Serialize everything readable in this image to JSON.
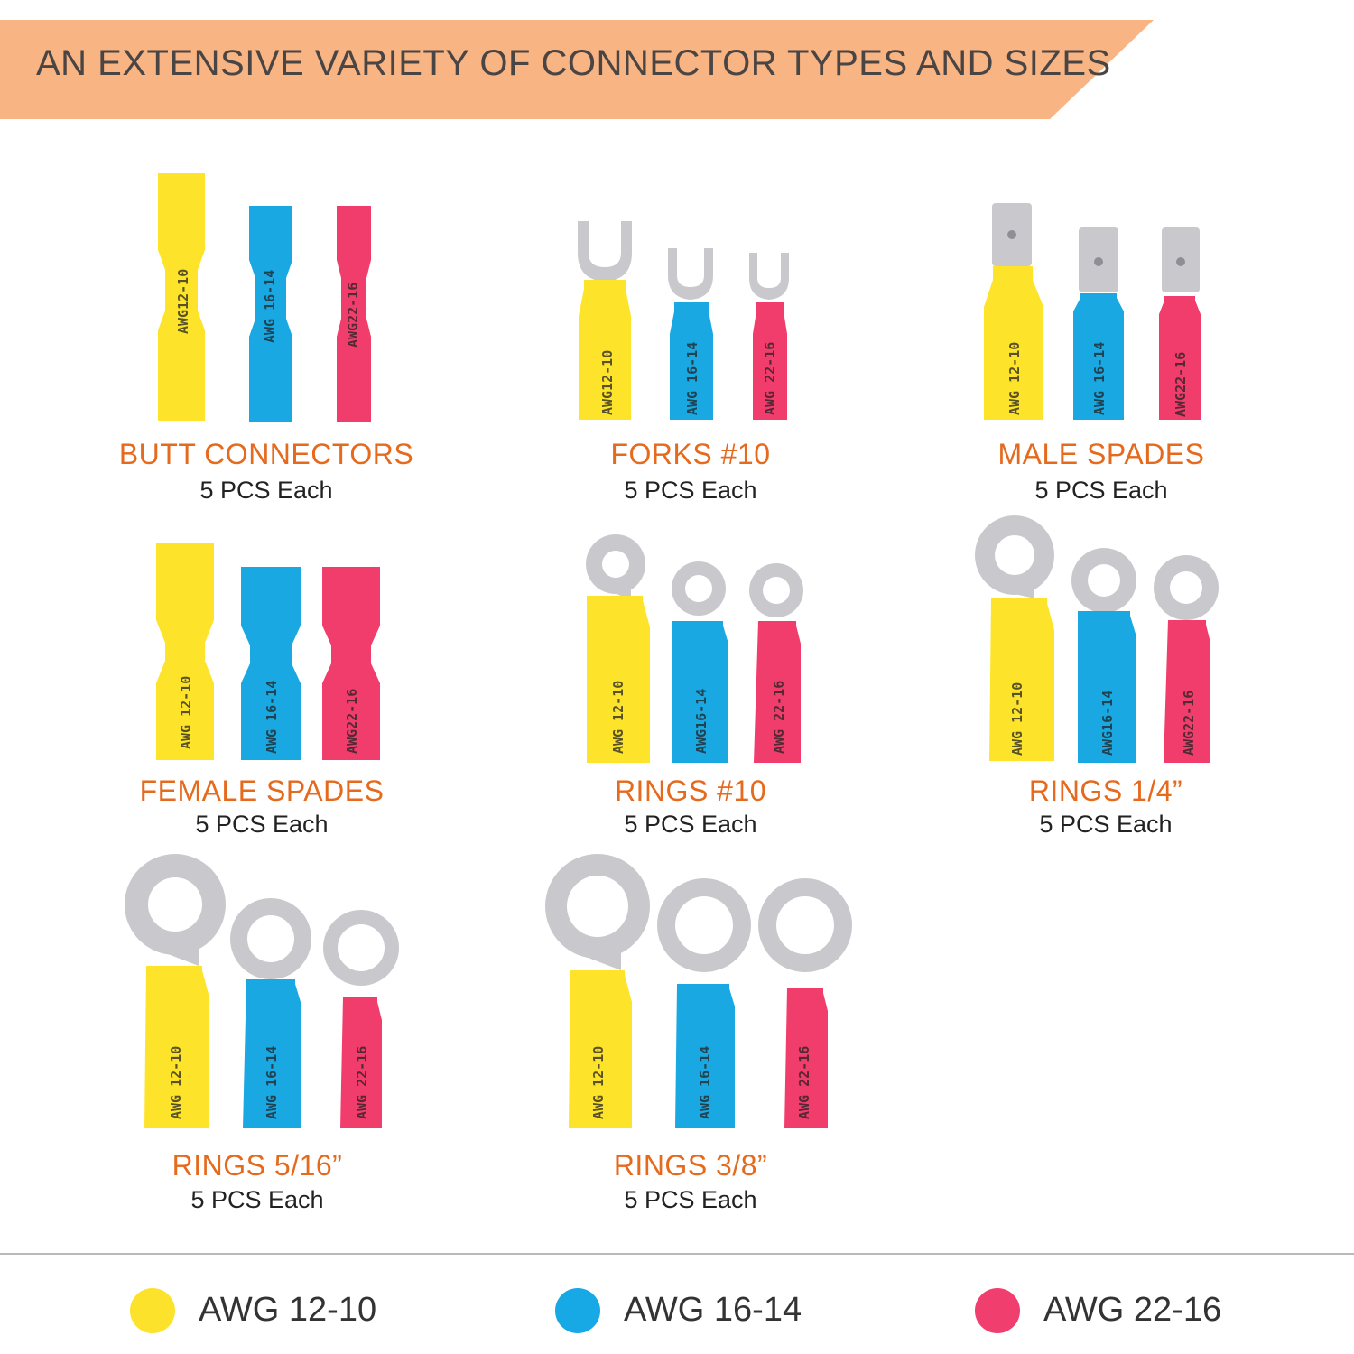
{
  "banner": {
    "title": "AN EXTENSIVE VARIETY OF CONNECTOR TYPES AND SIZES",
    "color": "#f8b482"
  },
  "colors": {
    "yellow": "#fde42a",
    "blue": "#1aa8e2",
    "pink": "#f03d6c",
    "metal": "#c9c9cd"
  },
  "connectors": [
    {
      "name": "BUTT CONNECTORS",
      "qty": "5 PCS Each",
      "marks": [
        "AWG12-10",
        "AWG 16-14",
        "AWG22-16"
      ]
    },
    {
      "name": "FORKS #10",
      "qty": "5 PCS Each",
      "marks": [
        "AWG12-10",
        "AWG 16-14",
        "AWG 22-16"
      ]
    },
    {
      "name": "MALE SPADES",
      "qty": "5 PCS Each",
      "marks": [
        "AWG 12-10",
        "AWG 16-14",
        "AWG22-16"
      ]
    },
    {
      "name": "FEMALE SPADES",
      "qty": "5 PCS Each",
      "marks": [
        "AWG 12-10",
        "AWG 16-14",
        "AWG22-16"
      ]
    },
    {
      "name": "RINGS #10",
      "qty": "5 PCS Each",
      "marks": [
        "AWG 12-10",
        "AWG16-14",
        "AWG 22-16"
      ]
    },
    {
      "name": "RINGS 1/4”",
      "qty": "5 PCS Each",
      "marks": [
        "AWG 12-10",
        "AWG16-14",
        "AWG22-16"
      ]
    },
    {
      "name": "RINGS 5/16”",
      "qty": "5 PCS Each",
      "marks": [
        "AWG 12-10",
        "AWG 16-14",
        "AWG 22-16"
      ]
    },
    {
      "name": "RINGS 3/8”",
      "qty": "5 PCS Each",
      "marks": [
        "AWG 12-10",
        "AWG 16-14",
        "AWG 22-16"
      ]
    }
  ],
  "legend": [
    {
      "label": "AWG 12-10",
      "color": "#fde22b"
    },
    {
      "label": "AWG 16-14",
      "color": "#16a9e6"
    },
    {
      "label": "AWG 22-16",
      "color": "#f03f6e"
    }
  ]
}
